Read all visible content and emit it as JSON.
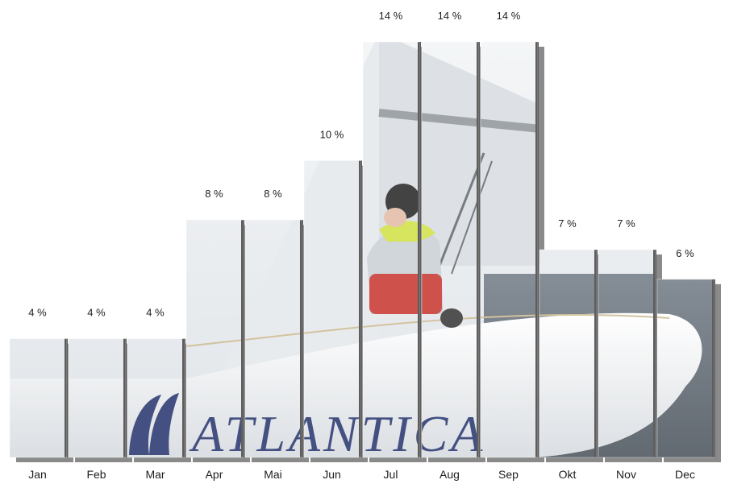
{
  "chart_data": {
    "type": "bar",
    "categories": [
      "Jan",
      "Feb",
      "Mar",
      "Apr",
      "Mai",
      "Jun",
      "Jul",
      "Aug",
      "Sep",
      "Okt",
      "Nov",
      "Dec"
    ],
    "values": [
      4,
      4,
      4,
      8,
      8,
      10,
      14,
      14,
      14,
      7,
      7,
      6
    ],
    "value_labels": [
      "4 %",
      "4 %",
      "4 %",
      "8 %",
      "8 %",
      "10 %",
      "14 %",
      "14 %",
      "14 %",
      "7 %",
      "7 %",
      "6 %"
    ],
    "unit": "%",
    "ylim": [
      0,
      14
    ],
    "grid": false,
    "legend": "none",
    "title": "",
    "xlabel": "",
    "ylabel": ""
  },
  "background": {
    "description_icon": "sailboat-photo",
    "logo_text": "ATLANTICA",
    "colors": {
      "sky": "#e8ecf0",
      "sail": "#dfe4e8",
      "hull": "#f2f4f6",
      "water": "#4a5560",
      "logo": "#1c2a66",
      "divider": "#3a3a3a",
      "jacket_red": "#c42b25",
      "jacket_yellow": "#cde03a"
    }
  }
}
